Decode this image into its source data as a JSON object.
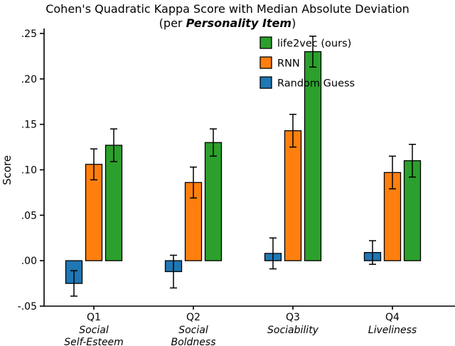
{
  "chart_data": {
    "type": "bar",
    "title": "Cohen's Quadratic Kappa Score with Median Absolute Deviation",
    "subtitle_prefix": "(per ",
    "subtitle_em": "Personality Item",
    "subtitle_suffix": ")",
    "ylabel": "Score",
    "ylim": [
      -0.05,
      0.25
    ],
    "yticks": [
      0.25,
      0.2,
      0.15,
      0.1,
      0.05,
      0.0,
      -0.05
    ],
    "ytick_labels": [
      ".25",
      ".20",
      ".15",
      ".10",
      ".05",
      ".00",
      "-.05"
    ],
    "grid": false,
    "legend_position": "upper-right-inside",
    "categories": [
      {
        "tick": "Q1",
        "name_lines": [
          "Social",
          "Self-Esteem"
        ]
      },
      {
        "tick": "Q2",
        "name_lines": [
          "Social",
          "Boldness"
        ]
      },
      {
        "tick": "Q3",
        "name_lines": [
          "Sociability"
        ]
      },
      {
        "tick": "Q4",
        "name_lines": [
          "Liveliness"
        ]
      }
    ],
    "series": [
      {
        "name": "Random Guess",
        "color": "#1f77b4",
        "values": [
          -0.025,
          -0.012,
          0.008,
          0.009
        ],
        "errors": [
          0.014,
          0.018,
          0.017,
          0.013
        ]
      },
      {
        "name": "RNN",
        "color": "#ff7f0e",
        "values": [
          0.106,
          0.086,
          0.143,
          0.097
        ],
        "errors": [
          0.017,
          0.017,
          0.018,
          0.018
        ]
      },
      {
        "name": "life2vec (ours)",
        "color": "#2ca02c",
        "values": [
          0.127,
          0.13,
          0.23,
          0.11
        ],
        "errors": [
          0.018,
          0.015,
          0.017,
          0.018
        ]
      }
    ],
    "legend_series_indices": [
      2,
      1,
      0
    ],
    "axis_color": "#000000"
  }
}
